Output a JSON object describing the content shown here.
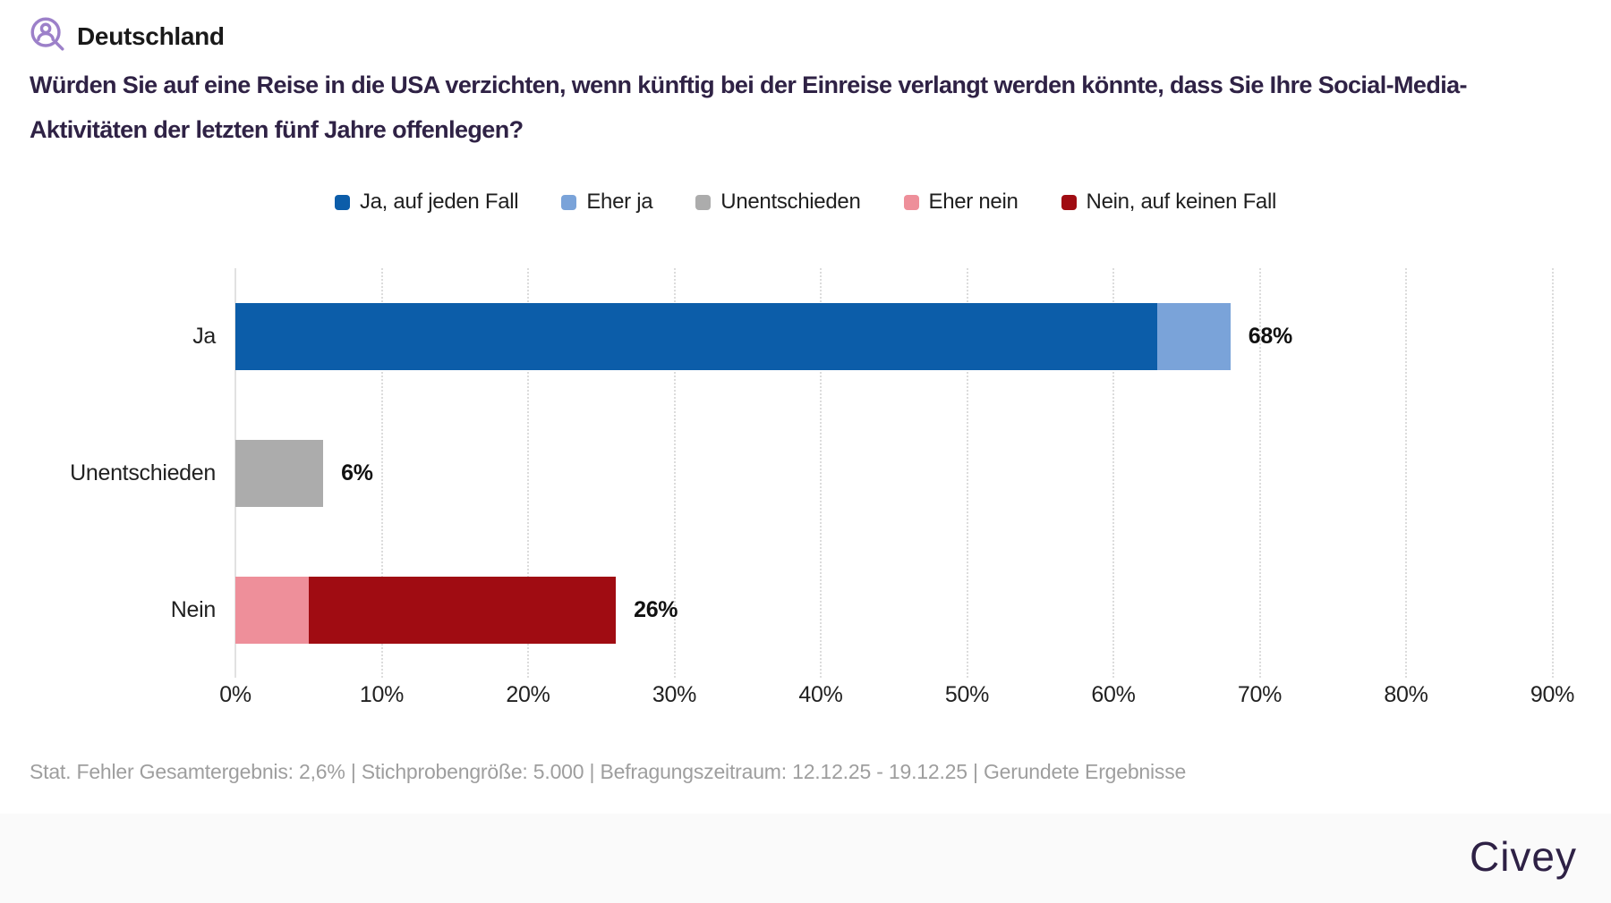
{
  "header": {
    "region_label": "Deutschland",
    "icon": "person-search-icon",
    "icon_color": "#9c80c9"
  },
  "title": {
    "text": "Würden Sie auf eine Reise in die USA verzichten, wenn künftig bei der Einreise verlangt werden könnte, dass Sie Ihre Social-Media-\nAktivitäten der letzten fünf Jahre offenlegen?"
  },
  "chart_data": {
    "type": "bar",
    "orientation": "horizontal",
    "stacked": true,
    "categories": [
      "Ja",
      "Unentschieden",
      "Nein"
    ],
    "series": [
      {
        "name": "Ja, auf jeden Fall",
        "color": "#0c5da9",
        "values": [
          63,
          0,
          0
        ]
      },
      {
        "name": "Eher ja",
        "color": "#7aa3d9",
        "values": [
          5,
          0,
          0
        ]
      },
      {
        "name": "Unentschieden",
        "color": "#acacac",
        "values": [
          0,
          6,
          0
        ]
      },
      {
        "name": "Eher nein",
        "color": "#ee8f9a",
        "values": [
          0,
          0,
          5
        ]
      },
      {
        "name": "Nein, auf keinen Fall",
        "color": "#a00c12",
        "values": [
          0,
          0,
          21
        ]
      }
    ],
    "totals": [
      68,
      6,
      26
    ],
    "total_labels": [
      "68%",
      "6%",
      "26%"
    ],
    "x_ticks": [
      "0%",
      "10%",
      "20%",
      "30%",
      "40%",
      "50%",
      "60%",
      "70%",
      "80%",
      "90%"
    ],
    "xlim": [
      0,
      90
    ],
    "grid": "vertical-dotted",
    "legend_position": "top-center"
  },
  "footnote": {
    "text": "Stat. Fehler Gesamtergebnis: 2,6% | Stichprobengröße: 5.000 | Befragungszeitraum: 12.12.25 - 19.12.25 | Gerundete Ergebnisse"
  },
  "brand": {
    "logo_text": "Civey",
    "logo_color": "#2e2145",
    "bar_color": "#fafafa"
  }
}
